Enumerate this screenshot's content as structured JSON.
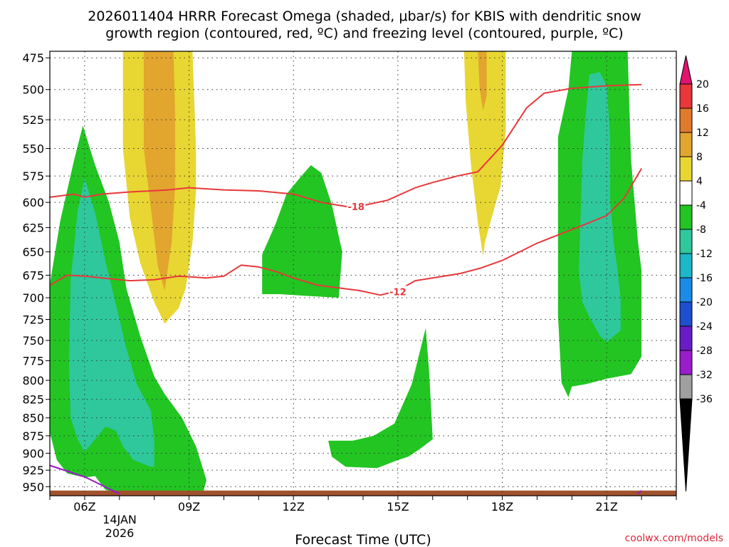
{
  "chart_data": {
    "type": "time-height contour",
    "title_line1": "2026011404 HRRR Forecast Omega (shaded, μbar/s) for KBIS with dendritic snow",
    "title_line2": "growth region (contoured, red, ºC) and freezing level (contoured, purple, ºC)",
    "xlabel": "Forecast Time (UTC)",
    "credit": "coolwx.com/models",
    "x_units": "forecast hour",
    "xlim": [
      1,
      19
    ],
    "y_units": "hPa",
    "ylim": [
      964,
      470
    ],
    "y_ticks": [
      475,
      500,
      525,
      550,
      575,
      600,
      625,
      650,
      675,
      700,
      725,
      750,
      775,
      800,
      825,
      850,
      875,
      900,
      925,
      950
    ],
    "x_ticks": [
      {
        "hour": 2,
        "label": "06Z"
      },
      {
        "hour": 5,
        "label": "09Z"
      },
      {
        "hour": 8,
        "label": "12Z"
      },
      {
        "hour": 11,
        "label": "15Z"
      },
      {
        "hour": 14,
        "label": "18Z"
      },
      {
        "hour": 17,
        "label": "21Z"
      }
    ],
    "date_label_line1": "14JAN",
    "date_label_line2": "2026",
    "grid": "dotted",
    "colorbar": {
      "ticks": [
        "20",
        "16",
        "12",
        "8",
        "4",
        "-4",
        "-8",
        "-12",
        "-16",
        "-20",
        "-24",
        "-28",
        "-32",
        "-36"
      ],
      "colors": [
        "#e8383b",
        "#e07a2c",
        "#e2a52e",
        "#e8d632",
        "#ffffff",
        "#22c522",
        "#2ec89c",
        "#1ab8c8",
        "#1a8ce8",
        "#1e4fd0",
        "#6a1cc8",
        "#9a1ccc",
        "#a0a0a0"
      ],
      "top_arrow_color": "#e0136e",
      "bottom_arrow_color": "#000000"
    },
    "omega_regions": [
      {
        "name": "yellow plume 06-09Z",
        "range": "4 to 8",
        "color": "#e8d632",
        "points": [
          [
            3.1,
            470
          ],
          [
            5.1,
            470
          ],
          [
            5.2,
            550
          ],
          [
            5.2,
            590
          ],
          [
            5.1,
            640
          ],
          [
            4.9,
            690
          ],
          [
            4.7,
            712
          ],
          [
            4.3,
            730
          ],
          [
            4.0,
            705
          ],
          [
            3.6,
            662
          ],
          [
            3.3,
            615
          ],
          [
            3.1,
            550
          ],
          [
            3.1,
            500
          ]
        ]
      },
      {
        "name": "orange core 06-09Z",
        "range": "8 to 12",
        "color": "#e2a52e",
        "points": [
          [
            3.7,
            470
          ],
          [
            4.55,
            470
          ],
          [
            4.6,
            520
          ],
          [
            4.6,
            585
          ],
          [
            4.5,
            640
          ],
          [
            4.3,
            692
          ],
          [
            4.1,
            665
          ],
          [
            3.9,
            605
          ],
          [
            3.7,
            550
          ],
          [
            3.7,
            510
          ]
        ]
      },
      {
        "name": "yellow plume 17Z",
        "range": "4 to 8",
        "color": "#e8d632",
        "points": [
          [
            12.9,
            470
          ],
          [
            14.1,
            470
          ],
          [
            14.1,
            535
          ],
          [
            13.95,
            585
          ],
          [
            13.8,
            602
          ],
          [
            13.5,
            640
          ],
          [
            13.45,
            655
          ],
          [
            13.3,
            620
          ],
          [
            13.1,
            565
          ],
          [
            12.95,
            510
          ]
        ]
      },
      {
        "name": "orange core 17Z",
        "range": "8 to 12",
        "color": "#e2a52e",
        "points": [
          [
            13.3,
            470
          ],
          [
            13.55,
            470
          ],
          [
            13.55,
            505
          ],
          [
            13.45,
            517
          ],
          [
            13.35,
            500
          ]
        ]
      },
      {
        "name": "green band 03-10Z",
        "range": "-4 to -8",
        "color": "#22c522",
        "points": [
          [
            1.0,
            685
          ],
          [
            1.3,
            618
          ],
          [
            1.7,
            560
          ],
          [
            1.95,
            530
          ],
          [
            2.3,
            565
          ],
          [
            2.7,
            600
          ],
          [
            3.0,
            640
          ],
          [
            3.2,
            690
          ],
          [
            3.6,
            745
          ],
          [
            4.0,
            795
          ],
          [
            4.3,
            818
          ],
          [
            4.8,
            850
          ],
          [
            5.2,
            890
          ],
          [
            5.5,
            940
          ],
          [
            5.4,
            960
          ],
          [
            4.8,
            962
          ],
          [
            3.2,
            962
          ],
          [
            2.6,
            955
          ],
          [
            2.3,
            934
          ],
          [
            2.0,
            936
          ],
          [
            1.5,
            930
          ],
          [
            1.2,
            910
          ],
          [
            1.0,
            870
          ]
        ]
      },
      {
        "name": "teal band 03-09Z",
        "range": "-8 to -12",
        "color": "#2ec89c",
        "points": [
          [
            1.6,
            680
          ],
          [
            1.8,
            608
          ],
          [
            2.0,
            577
          ],
          [
            2.3,
            610
          ],
          [
            2.6,
            660
          ],
          [
            2.9,
            708
          ],
          [
            3.2,
            760
          ],
          [
            3.5,
            805
          ],
          [
            3.9,
            840
          ],
          [
            4.0,
            880
          ],
          [
            4.0,
            920
          ],
          [
            3.9,
            920
          ],
          [
            3.4,
            910
          ],
          [
            3.1,
            890
          ],
          [
            2.9,
            868
          ],
          [
            2.6,
            862
          ],
          [
            2.3,
            880
          ],
          [
            2.0,
            898
          ],
          [
            1.8,
            880
          ],
          [
            1.6,
            850
          ],
          [
            1.55,
            780
          ]
        ]
      },
      {
        "name": "green blob 12-14Z",
        "range": "-4 to -8",
        "color": "#22c522",
        "points": [
          [
            7.1,
            653
          ],
          [
            7.5,
            620
          ],
          [
            7.8,
            592
          ],
          [
            8.2,
            576
          ],
          [
            8.5,
            565
          ],
          [
            8.8,
            572
          ],
          [
            9.1,
            602
          ],
          [
            9.4,
            650
          ],
          [
            9.3,
            700
          ],
          [
            8.4,
            698
          ],
          [
            7.6,
            696
          ],
          [
            7.1,
            696
          ]
        ]
      },
      {
        "name": "green finger 15-16Z",
        "range": "-4 to -8",
        "color": "#22c522",
        "points": [
          [
            9.0,
            882
          ],
          [
            9.7,
            882
          ],
          [
            10.3,
            875
          ],
          [
            10.9,
            858
          ],
          [
            11.4,
            805
          ],
          [
            11.8,
            735
          ],
          [
            11.9,
            790
          ],
          [
            12.0,
            880
          ],
          [
            11.6,
            895
          ],
          [
            11.3,
            905
          ],
          [
            10.9,
            912
          ],
          [
            10.4,
            922
          ],
          [
            9.5,
            920
          ],
          [
            9.1,
            905
          ]
        ]
      },
      {
        "name": "green band 19-22Z",
        "range": "-4 to -8",
        "color": "#22c522",
        "points": [
          [
            15.6,
            540
          ],
          [
            15.9,
            500
          ],
          [
            16.0,
            470
          ],
          [
            17.6,
            470
          ],
          [
            17.7,
            560
          ],
          [
            17.9,
            640
          ],
          [
            18.0,
            670
          ],
          [
            18.0,
            770
          ],
          [
            17.7,
            792
          ],
          [
            17.0,
            798
          ],
          [
            16.4,
            805
          ],
          [
            16.0,
            808
          ],
          [
            15.9,
            822
          ],
          [
            15.7,
            803
          ],
          [
            15.6,
            720
          ]
        ]
      },
      {
        "name": "teal band 19-22Z",
        "range": "-8 to -12",
        "color": "#2ec89c",
        "points": [
          [
            16.2,
            670
          ],
          [
            16.3,
            560
          ],
          [
            16.4,
            520
          ],
          [
            16.5,
            488
          ],
          [
            16.8,
            486
          ],
          [
            17.0,
            497
          ],
          [
            17.1,
            540
          ],
          [
            17.1,
            600
          ],
          [
            17.2,
            640
          ],
          [
            17.3,
            666
          ],
          [
            17.4,
            702
          ],
          [
            17.4,
            738
          ],
          [
            17.0,
            752
          ],
          [
            16.8,
            744
          ],
          [
            16.5,
            722
          ],
          [
            16.3,
            705
          ]
        ]
      }
    ],
    "contours": [
      {
        "label": "-18",
        "color": "#e8383b",
        "label_at": [
          9.8,
          604
        ],
        "points": [
          [
            1,
            595
          ],
          [
            1.7,
            592
          ],
          [
            2.0,
            595
          ],
          [
            2.5,
            592
          ],
          [
            3.3,
            590
          ],
          [
            3.9,
            589
          ],
          [
            4.4,
            588
          ],
          [
            5.0,
            586
          ],
          [
            6.0,
            588
          ],
          [
            7.0,
            589
          ],
          [
            8.0,
            592
          ],
          [
            8.8,
            600
          ],
          [
            9.5,
            604
          ],
          [
            10.0,
            603
          ],
          [
            10.7,
            598
          ],
          [
            11.5,
            586
          ],
          [
            12.0,
            581
          ],
          [
            12.7,
            575
          ],
          [
            13.3,
            571
          ],
          [
            14.0,
            547
          ],
          [
            14.7,
            515
          ],
          [
            15.2,
            503
          ],
          [
            16.0,
            499
          ],
          [
            17.0,
            497
          ],
          [
            18.0,
            496
          ]
        ]
      },
      {
        "label": "-12",
        "color": "#e8383b",
        "label_at": [
          11.0,
          693
        ],
        "points": [
          [
            1,
            686
          ],
          [
            1.5,
            675
          ],
          [
            2.0,
            676
          ],
          [
            2.5,
            678
          ],
          [
            3.3,
            681
          ],
          [
            4.0,
            680
          ],
          [
            4.7,
            676
          ],
          [
            5.5,
            678
          ],
          [
            6.0,
            676
          ],
          [
            6.5,
            664
          ],
          [
            7.0,
            666
          ],
          [
            7.5,
            671
          ],
          [
            8.0,
            678
          ],
          [
            8.7,
            686
          ],
          [
            9.3,
            689
          ],
          [
            9.9,
            692
          ],
          [
            10.5,
            697
          ],
          [
            11.0,
            692
          ],
          [
            11.5,
            681
          ],
          [
            12.0,
            678
          ],
          [
            12.8,
            673
          ],
          [
            13.4,
            667
          ],
          [
            14.0,
            659
          ],
          [
            15.0,
            641
          ],
          [
            16.5,
            620
          ],
          [
            17.0,
            613
          ],
          [
            17.5,
            596
          ],
          [
            18.0,
            568
          ]
        ]
      },
      {
        "label": "freezing level",
        "color": "#9b16c8",
        "points": [
          [
            1,
            918
          ],
          [
            2.0,
            935
          ],
          [
            3.0,
            961
          ]
        ]
      },
      {
        "label": "freezing level",
        "color": "#9b16c8",
        "points": [
          [
            17.9,
            961
          ],
          [
            18.0,
            956
          ]
        ]
      }
    ],
    "terrain": {
      "top_hPa": 956,
      "color": "#a0522d"
    }
  }
}
